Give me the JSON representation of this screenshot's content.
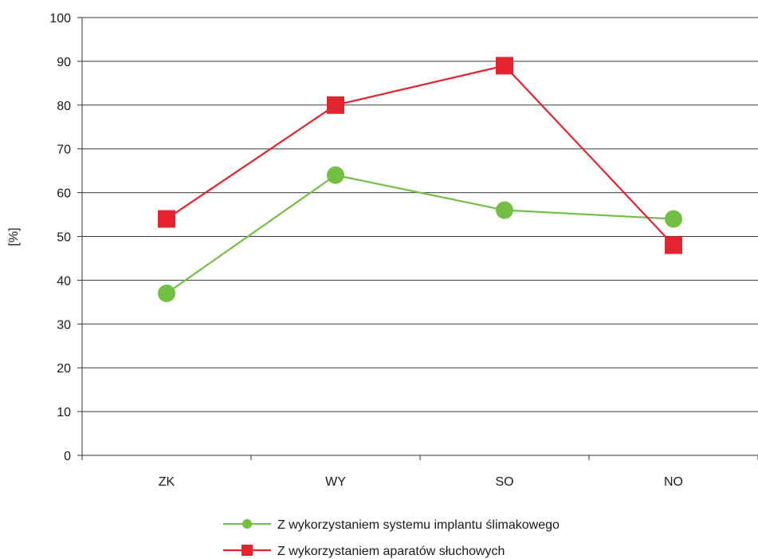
{
  "chart_data": {
    "type": "line",
    "categories": [
      "ZK",
      "WY",
      "SO",
      "NO"
    ],
    "ylabel": "[%]",
    "xlabel": "",
    "ylim": [
      0,
      100
    ],
    "y_ticks": [
      0,
      10,
      20,
      30,
      40,
      50,
      60,
      70,
      80,
      90,
      100
    ],
    "grid": "horizontal",
    "legend_position": "bottom-center",
    "series": [
      {
        "name": "Z wykorzystaniem systemu implantu ślimakowego",
        "values": [
          37,
          64,
          56,
          54
        ],
        "color": "#72bf44",
        "marker": "circle"
      },
      {
        "name": "Z wykorzystaniem aparatów słuchowych",
        "values": [
          54,
          80,
          89,
          48
        ],
        "color": "#e3232d",
        "marker": "square"
      }
    ]
  }
}
